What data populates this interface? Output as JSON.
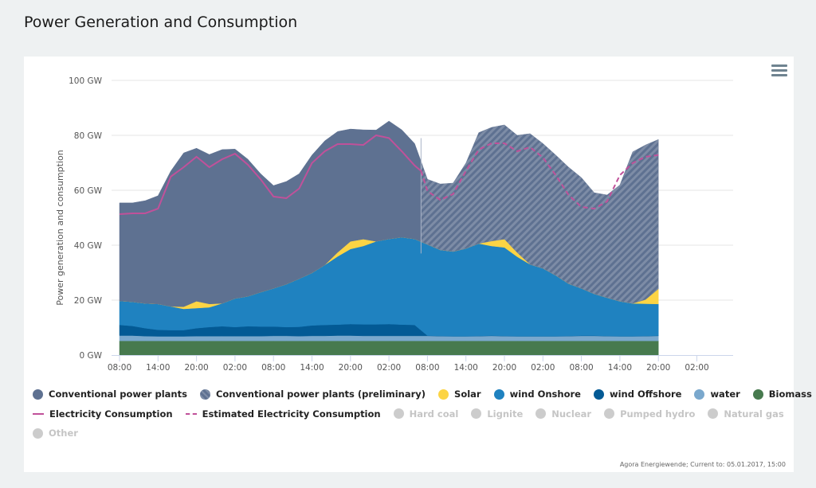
{
  "page": {
    "title": "Power Generation and Consumption"
  },
  "menu": {
    "icon": "hamburger-menu-icon"
  },
  "credit": "Agora Energiewende; Current to: 05.01.2017, 15:00",
  "legend": {
    "row1": [
      {
        "label": "Conventional power plants",
        "color": "#5e7191",
        "kind": "dot",
        "active": true
      },
      {
        "label": "Conventional power plants (preliminary)",
        "color": "#5e7191",
        "kind": "hatched-dot",
        "active": true
      },
      {
        "label": "Solar",
        "color": "#fcd444",
        "kind": "dot",
        "active": true
      },
      {
        "label": "wind Onshore",
        "color": "#1f82c0",
        "kind": "dot",
        "active": true
      },
      {
        "label": "wind Offshore",
        "color": "#035a95",
        "kind": "dot",
        "active": true
      },
      {
        "label": "water",
        "color": "#7aa8cd",
        "kind": "dot",
        "active": true
      },
      {
        "label": "Biomass",
        "color": "#477a4e",
        "kind": "dot",
        "active": true
      }
    ],
    "row2": [
      {
        "label": "Electricity Consumption",
        "color": "#c0519a",
        "kind": "line",
        "active": true
      },
      {
        "label": "Estimated Electricity Consumption",
        "color": "#c0519a",
        "kind": "dashed-line",
        "active": true
      },
      {
        "label": "Hard coal",
        "color": "#cccccc",
        "kind": "dot",
        "active": false
      },
      {
        "label": "Lignite",
        "color": "#cccccc",
        "kind": "dot",
        "active": false
      },
      {
        "label": "Nuclear",
        "color": "#cccccc",
        "kind": "dot",
        "active": false
      },
      {
        "label": "Pumped hydro",
        "color": "#cccccc",
        "kind": "dot",
        "active": false
      },
      {
        "label": "Natural gas",
        "color": "#cccccc",
        "kind": "dot",
        "active": false
      }
    ],
    "row3": [
      {
        "label": "Other",
        "color": "#cccccc",
        "kind": "dot",
        "active": false
      }
    ]
  },
  "chart_data": {
    "type": "area",
    "title": "Power Generation and Consumption",
    "xlabel": "",
    "ylabel": "Power generation and consumption",
    "ylim": [
      0,
      100
    ],
    "yticks": [
      "0 GW",
      "20 GW",
      "40 GW",
      "60 GW",
      "80 GW",
      "100 GW"
    ],
    "ytick_values": [
      0,
      20,
      40,
      60,
      80,
      100
    ],
    "xticks": [
      "08:00",
      "14:00",
      "20:00",
      "02:00",
      "08:00",
      "14:00",
      "20:00",
      "02:00",
      "08:00",
      "14:00",
      "20:00",
      "02:00",
      "08:00",
      "14:00",
      "20:00",
      "02:00"
    ],
    "xtick_hours": [
      0,
      6,
      12,
      18,
      24,
      30,
      36,
      42,
      48,
      54,
      60,
      66,
      72,
      78,
      84,
      90
    ],
    "xlim_hours": [
      0,
      96
    ],
    "grid": true,
    "stacked": true,
    "x_hours": [
      0,
      2,
      4,
      6,
      8,
      10,
      12,
      14,
      16,
      18,
      20,
      22,
      24,
      26,
      28,
      30,
      32,
      34,
      36,
      38,
      40,
      42,
      44,
      46,
      48,
      50,
      52,
      54,
      56,
      58,
      60,
      62,
      64,
      66,
      68,
      70,
      72,
      74,
      76,
      78,
      80,
      82,
      84
    ],
    "preliminary_from_hour": 47,
    "stack_order": [
      "Biomass",
      "water",
      "wind Offshore",
      "wind Onshore",
      "Solar",
      "Conventional power plants"
    ],
    "series": [
      {
        "name": "Biomass",
        "color": "#477a4e",
        "values": [
          5.2,
          5.2,
          5.2,
          5.2,
          5.2,
          5.2,
          5.2,
          5.2,
          5.2,
          5.2,
          5.2,
          5.2,
          5.2,
          5.2,
          5.2,
          5.2,
          5.2,
          5.2,
          5.2,
          5.2,
          5.2,
          5.2,
          5.2,
          5.2,
          5.2,
          5.2,
          5.2,
          5.2,
          5.2,
          5.2,
          5.2,
          5.2,
          5.2,
          5.2,
          5.2,
          5.2,
          5.2,
          5.2,
          5.2,
          5.2,
          5.2,
          5.2,
          5.2
        ]
      },
      {
        "name": "water",
        "color": "#7aa8cd",
        "values": [
          1.9,
          1.9,
          1.7,
          1.6,
          1.6,
          1.6,
          1.7,
          1.7,
          1.7,
          1.7,
          1.7,
          1.7,
          1.8,
          1.8,
          1.7,
          1.8,
          1.8,
          1.9,
          1.9,
          1.8,
          1.8,
          1.8,
          1.8,
          1.8,
          1.8,
          1.7,
          1.6,
          1.6,
          1.7,
          1.8,
          1.7,
          1.6,
          1.6,
          1.6,
          1.6,
          1.7,
          1.8,
          1.8,
          1.7,
          1.6,
          1.6,
          1.7,
          1.8
        ]
      },
      {
        "name": "wind Offshore",
        "color": "#035a95",
        "values": [
          3.9,
          3.5,
          2.9,
          2.4,
          2.3,
          2.3,
          2.9,
          3.3,
          3.6,
          3.3,
          3.6,
          3.5,
          3.4,
          3.2,
          3.4,
          3.8,
          4.0,
          4.0,
          4.2,
          4.2,
          4.2,
          4.3,
          4.1,
          4.0,
          0.1,
          0.1,
          0.1,
          0.1,
          0.1,
          0.1,
          0.1,
          0.1,
          0.1,
          0.1,
          0.1,
          0.1,
          0.1,
          0.1,
          0.1,
          0.1,
          0.1,
          0.1,
          0.1
        ]
      },
      {
        "name": "wind Onshore",
        "color": "#1f82c0",
        "values": [
          8.7,
          8.8,
          9.0,
          9.4,
          8.6,
          7.7,
          7.3,
          7.2,
          8.3,
          10.4,
          10.9,
          12.5,
          13.9,
          15.6,
          17.5,
          19.1,
          21.8,
          24.8,
          27.3,
          28.5,
          30.2,
          31.0,
          31.8,
          31.3,
          33.2,
          31.3,
          30.8,
          31.9,
          33.6,
          32.6,
          32.2,
          28.9,
          26.1,
          24.7,
          22.1,
          19.0,
          17.2,
          15.2,
          13.9,
          12.7,
          11.9,
          11.7,
          11.5
        ]
      },
      {
        "name": "Solar",
        "color": "#fcd444",
        "values": [
          0,
          0,
          0,
          0,
          0,
          0.8,
          2.5,
          1.2,
          0,
          0,
          0,
          0,
          0,
          0,
          0,
          0,
          0,
          1.5,
          2.8,
          2.5,
          0,
          0,
          0,
          0,
          0,
          0,
          0,
          0,
          0,
          1.8,
          3.0,
          1.5,
          0,
          0,
          0,
          0,
          0,
          0,
          0,
          0,
          0,
          1.5,
          5.5
        ]
      },
      {
        "name": "Conventional power plants",
        "color": "#5e7191",
        "values": [
          35.7,
          36.0,
          37.4,
          39.4,
          49.3,
          56.0,
          55.7,
          54.4,
          56.0,
          54.4,
          49.9,
          43.1,
          37.4,
          37.4,
          38.2,
          42.9,
          45.2,
          44.0,
          40.9,
          39.8,
          40.5,
          42.9,
          39.1,
          34.7,
          23.7,
          24.0,
          24.9,
          31.1,
          40.4,
          41.4,
          41.6,
          42.7,
          47.6,
          45.4,
          43.8,
          42.4,
          40.3,
          36.8,
          37.4,
          42.3,
          55.2,
          56.3,
          54.4
        ]
      }
    ],
    "lines": [
      {
        "name": "Electricity Consumption",
        "color": "#c0519a",
        "style": "solid",
        "x_hours": [
          0,
          2,
          4,
          6,
          8,
          10,
          12,
          14,
          16,
          18,
          20,
          22,
          24,
          26,
          28,
          30,
          32,
          34,
          36,
          38,
          40,
          42,
          44,
          46,
          47
        ],
        "values": [
          51.3,
          51.6,
          51.6,
          53.3,
          65.0,
          68.4,
          72.2,
          68.4,
          71.3,
          73.3,
          69.3,
          64.0,
          57.7,
          57.1,
          60.6,
          69.9,
          74.2,
          76.8,
          76.8,
          76.5,
          80.0,
          79.0,
          74.2,
          69.0,
          67.0
        ]
      },
      {
        "name": "Estimated Electricity Consumption",
        "color": "#c0519a",
        "style": "dashed",
        "x_hours": [
          47,
          48,
          50,
          52,
          54,
          56,
          58,
          60,
          62,
          64,
          66,
          68,
          70,
          72,
          74,
          76,
          78,
          80,
          82,
          84
        ],
        "values": [
          67.0,
          59.7,
          56.5,
          58.6,
          67.0,
          74.8,
          77.1,
          77.1,
          74.2,
          75.7,
          71.9,
          65.5,
          58.3,
          53.9,
          53.3,
          55.9,
          65.5,
          69.9,
          72.2,
          72.8
        ]
      }
    ]
  }
}
